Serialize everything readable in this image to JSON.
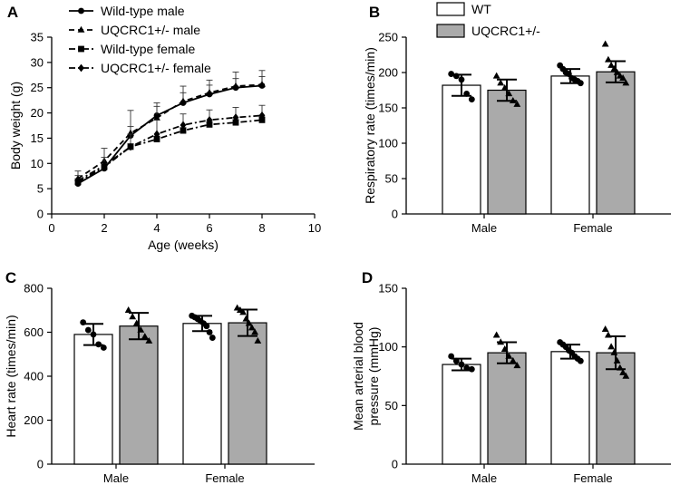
{
  "chart_data": [
    {
      "panel_label": "A",
      "type": "line",
      "title": "",
      "xlabel": "Age (weeks)",
      "ylabel": "Body weight (g)",
      "xlim": [
        0,
        10
      ],
      "ylim": [
        0,
        35
      ],
      "xticks": [
        "0",
        "2",
        "4",
        "6",
        "8",
        "10"
      ],
      "yticks": [
        "0",
        "5",
        "10",
        "15",
        "20",
        "25",
        "30",
        "35"
      ],
      "legend_position": "top",
      "series": [
        {
          "name": "Wild-type male",
          "line_style": "solid",
          "marker": "circle",
          "x": [
            1,
            2,
            3,
            4,
            5,
            6,
            7,
            8
          ],
          "values": [
            6.0,
            9.0,
            15.5,
            19.5,
            22.0,
            23.7,
            25.0,
            25.4
          ],
          "error": [
            1.0,
            1.2,
            1.8,
            1.8,
            2.0,
            1.8,
            1.8,
            1.8
          ]
        },
        {
          "name": "UQCRC1+/- male",
          "line_style": "dashed",
          "marker": "triangle",
          "x": [
            1,
            2,
            3,
            4,
            5,
            6,
            7,
            8
          ],
          "values": [
            7.0,
            10.5,
            16.0,
            19.0,
            22.3,
            24.0,
            25.3,
            25.6
          ],
          "error": [
            1.5,
            2.5,
            4.5,
            3.0,
            3.0,
            2.5,
            2.8,
            2.8
          ]
        },
        {
          "name": "Wild-type female",
          "line_style": "dashdot",
          "marker": "square",
          "x": [
            1,
            2,
            3,
            4,
            5,
            6,
            7,
            8
          ],
          "values": [
            6.3,
            9.3,
            13.3,
            14.8,
            16.5,
            17.7,
            18.1,
            18.6
          ],
          "error": [
            0.5,
            0.6,
            0.6,
            0.6,
            0.6,
            0.6,
            0.6,
            0.6
          ]
        },
        {
          "name": "UQCRC1+/- female",
          "line_style": "dashdot",
          "marker": "diamond",
          "x": [
            1,
            2,
            3,
            4,
            5,
            6,
            7,
            8
          ],
          "values": [
            6.6,
            9.6,
            13.3,
            15.8,
            17.6,
            18.6,
            19.1,
            19.5
          ],
          "error": [
            1.0,
            1.6,
            2.5,
            2.8,
            2.2,
            2.0,
            2.0,
            2.0
          ]
        }
      ]
    },
    {
      "panel_label": "B",
      "type": "bar",
      "title": "",
      "xlabel": "",
      "ylabel": "Respiratory rate (times/min)",
      "ylim": [
        0,
        250
      ],
      "yticks": [
        "0",
        "50",
        "100",
        "150",
        "200",
        "250"
      ],
      "categories": [
        "Male",
        "Female"
      ],
      "legend_position": "top-left",
      "series": [
        {
          "name": "WT",
          "fill": "#ffffff",
          "marker": "circle",
          "values": [
            182,
            195
          ],
          "error": [
            15,
            10
          ],
          "points": [
            [
              198,
              195,
              190,
              170,
              162
            ],
            [
              210,
              205,
              200,
              198,
              192,
              190,
              188,
              185
            ]
          ]
        },
        {
          "name": "UQCRC1+/-",
          "fill": "#aaaaaa",
          "marker": "triangle",
          "values": [
            175,
            201
          ],
          "error": [
            15,
            15
          ],
          "points": [
            [
              195,
              185,
              178,
              170,
              160,
              155
            ],
            [
              240,
              218,
              210,
              205,
              200,
              195,
              192,
              185
            ]
          ]
        }
      ]
    },
    {
      "panel_label": "C",
      "type": "bar",
      "title": "",
      "xlabel": "",
      "ylabel": "Heart rate (times/min)",
      "ylim": [
        0,
        800
      ],
      "yticks": [
        "0",
        "200",
        "400",
        "600",
        "800"
      ],
      "categories": [
        "Male",
        "Female"
      ],
      "series": [
        {
          "name": "WT",
          "fill": "#ffffff",
          "marker": "circle",
          "values": [
            590,
            640
          ],
          "error": [
            48,
            35
          ],
          "points": [
            [
              645,
              610,
              590,
              545,
              530
            ],
            [
              675,
              668,
              660,
              650,
              640,
              628,
              600,
              575
            ]
          ]
        },
        {
          "name": "UQCRC1+/-",
          "fill": "#aaaaaa",
          "marker": "triangle",
          "values": [
            628,
            643
          ],
          "error": [
            60,
            60
          ],
          "points": [
            [
              700,
              670,
              640,
              610,
              580,
              560
            ],
            [
              710,
              700,
              690,
              660,
              640,
              620,
              600,
              560
            ]
          ]
        }
      ]
    },
    {
      "panel_label": "D",
      "type": "bar",
      "title": "",
      "xlabel": "",
      "ylabel": "Mean arterial blood pressure (mmHg)",
      "ylabel_lines": [
        "Mean arterial blood",
        "pressure (mmHg)"
      ],
      "ylim": [
        0,
        150
      ],
      "yticks": [
        "0",
        "50",
        "100",
        "150"
      ],
      "categories": [
        "Male",
        "Female"
      ],
      "series": [
        {
          "name": "WT",
          "fill": "#ffffff",
          "marker": "circle",
          "values": [
            85,
            96
          ],
          "error": [
            5,
            6
          ],
          "points": [
            [
              92,
              88,
              85,
              82,
              81
            ],
            [
              104,
              102,
              100,
              97,
              95,
              92,
              90,
              88
            ]
          ]
        },
        {
          "name": "UQCRC1+/-",
          "fill": "#aaaaaa",
          "marker": "triangle",
          "values": [
            95,
            95
          ],
          "error": [
            9,
            14
          ],
          "points": [
            [
              110,
              104,
              98,
              92,
              88,
              84
            ],
            [
              115,
              110,
              100,
              95,
              88,
              82,
              78,
              75
            ]
          ]
        }
      ]
    }
  ]
}
